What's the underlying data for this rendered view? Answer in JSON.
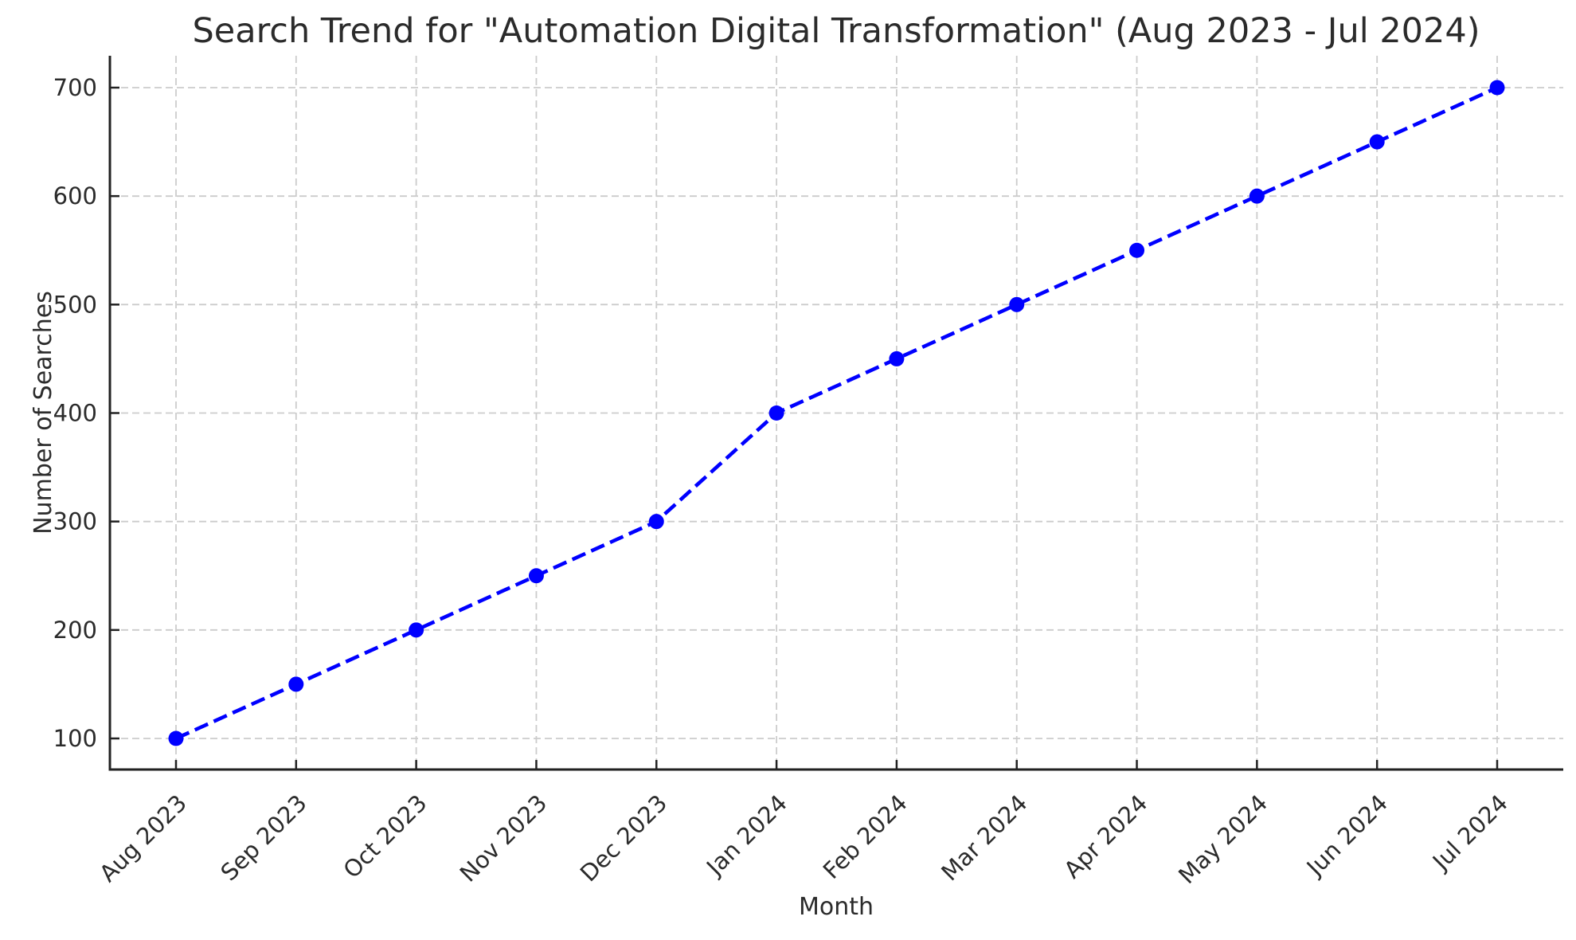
{
  "chart_data": {
    "type": "line",
    "title": "Search Trend for \"Automation Digital Transformation\" (Aug 2023 - Jul 2024)",
    "xlabel": "Month",
    "ylabel": "Number of Searches",
    "categories": [
      "Aug 2023",
      "Sep 2023",
      "Oct 2023",
      "Nov 2023",
      "Dec 2023",
      "Jan 2024",
      "Feb 2024",
      "Mar 2024",
      "Apr 2024",
      "May 2024",
      "Jun 2024",
      "Jul 2024"
    ],
    "series": [
      {
        "name": "searches",
        "values": [
          100,
          150,
          200,
          250,
          300,
          400,
          450,
          500,
          550,
          600,
          650,
          700
        ]
      }
    ],
    "yticks": [
      100,
      200,
      300,
      400,
      500,
      600,
      700
    ],
    "ylim": [
      71,
      729
    ],
    "x_tick_rotation": 45,
    "grid": true,
    "legend_position": "none",
    "line_style": "dashed",
    "marker": "circle",
    "colors": {
      "line": "#0000ff",
      "marker": "#0000ff",
      "grid": "#cccccc",
      "axis": "#222222",
      "text": "#2b2b2b",
      "background": "#ffffff"
    }
  }
}
